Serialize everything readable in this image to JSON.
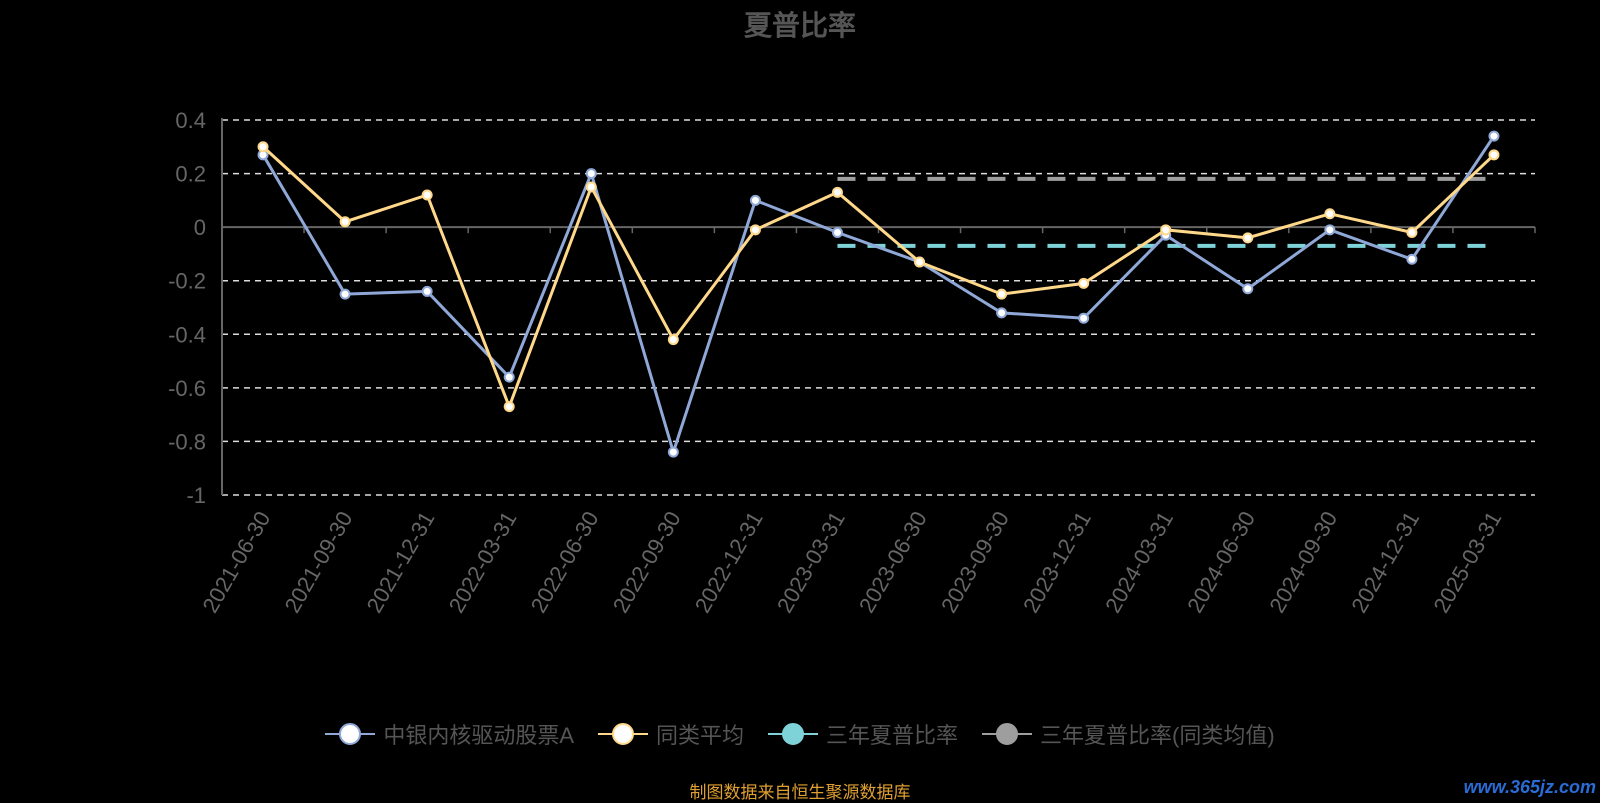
{
  "chart_data": {
    "type": "line",
    "title": "夏普比率",
    "categories": [
      "2021-06-30",
      "2021-09-30",
      "2021-12-31",
      "2022-03-31",
      "2022-06-30",
      "2022-09-30",
      "2022-12-31",
      "2023-03-31",
      "2023-06-30",
      "2023-09-30",
      "2023-12-31",
      "2024-03-31",
      "2024-06-30",
      "2024-09-30",
      "2024-12-31",
      "2025-03-31"
    ],
    "y_ticks": [
      "0.4",
      "0.2",
      "0",
      "-0.2",
      "-0.4",
      "-0.6",
      "-0.8",
      "-1"
    ],
    "ylim": [
      -1,
      0.4
    ],
    "grid": true,
    "legend_position": "bottom",
    "series": [
      {
        "name": "中银内核驱动股票A",
        "color": "#8fa8d8",
        "values": [
          0.27,
          -0.25,
          -0.24,
          -0.56,
          0.2,
          -0.84,
          0.1,
          -0.02,
          -0.13,
          -0.32,
          -0.34,
          -0.03,
          -0.23,
          -0.01,
          -0.12,
          0.34
        ]
      },
      {
        "name": "同类平均",
        "color": "#ffd88a",
        "values": [
          0.3,
          0.02,
          0.12,
          -0.67,
          0.15,
          -0.42,
          -0.01,
          0.13,
          -0.13,
          -0.25,
          -0.21,
          -0.01,
          -0.04,
          0.05,
          -0.02,
          0.27
        ]
      }
    ],
    "reference_lines": [
      {
        "name": "三年夏普比率",
        "color": "#7ed3d8",
        "value": -0.07,
        "from": "2023-03-31",
        "to": "2025-03-31"
      },
      {
        "name": "三年夏普比率(同类均值)",
        "color": "#9e9e9e",
        "value": 0.18,
        "from": "2023-03-31",
        "to": "2025-03-31"
      }
    ]
  },
  "legend": [
    {
      "label": "中银内核驱动股票A",
      "color": "#8fa8d8",
      "fill": "#ffffff"
    },
    {
      "label": "同类平均",
      "color": "#ffd88a",
      "fill": "#ffffff"
    },
    {
      "label": "三年夏普比率",
      "color": "#7ed3d8",
      "fill": "#7ed3d8"
    },
    {
      "label": "三年夏普比率(同类均值)",
      "color": "#9e9e9e",
      "fill": "#9e9e9e"
    }
  ],
  "source": "制图数据来自恒生聚源数据库",
  "watermark": "www.365jz.com"
}
